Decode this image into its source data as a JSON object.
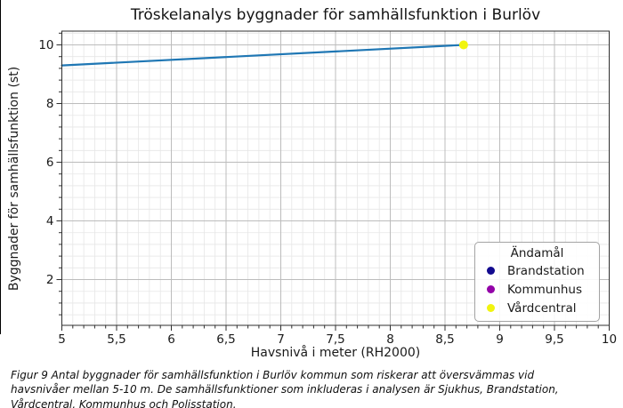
{
  "figure": {
    "caption": "Figur 9 Antal byggnader för samhällsfunktion i Burlöv kommun som riskerar att översvämmas vid havsnivåer mellan 5-10 m. De samhällsfunktioner som inkluderas i analysen är Sjukhus, Brandstation, Vårdcentral, Kommunhus och Polisstation."
  },
  "chart_data": {
    "type": "line",
    "title": "Tröskelanalys byggnader för samhällsfunktion i Burlöv",
    "xlabel": "Havsnivå i meter (RH2000)",
    "ylabel": "Byggnader för samhällsfunktion (st)",
    "xlim": [
      5,
      10
    ],
    "ylim": [
      0.44,
      10.47
    ],
    "x_major_ticks": [
      5,
      5.5,
      6,
      6.5,
      7,
      7.5,
      8,
      8.5,
      9,
      9.5,
      10
    ],
    "x_tick_labels": [
      "5",
      "5,5",
      "6",
      "6,5",
      "7",
      "7,5",
      "8",
      "8,5",
      "9",
      "9,5",
      "10"
    ],
    "y_major_ticks": [
      2,
      4,
      6,
      8,
      10
    ],
    "y_tick_labels": [
      "2",
      "4",
      "6",
      "8",
      "10"
    ],
    "x_minor_step": 0.1,
    "y_minor_step": 0.4,
    "grid": true,
    "series": [
      {
        "color": "#1f77b4",
        "points": [
          [
            5,
            9.3
          ],
          [
            8.67,
            10
          ]
        ]
      }
    ],
    "scatter": [
      {
        "label": "Vårdcentral",
        "x": 8.67,
        "y": 10,
        "color": "#f1f40e",
        "radius": 5
      }
    ],
    "legend": {
      "title": "Ändamål",
      "position": "lower right",
      "items": [
        {
          "label": "Brandstation",
          "color": "#120a8f"
        },
        {
          "label": "Kommunhus",
          "color": "#9303a8"
        },
        {
          "label": "Vårdcentral",
          "color": "#f1f40e"
        }
      ]
    },
    "colors": {
      "grid_major": "#bcbcbc",
      "grid_minor": "#e6e6e6",
      "spine": "#2f2f2f",
      "tick": "#2f2f2f"
    }
  }
}
